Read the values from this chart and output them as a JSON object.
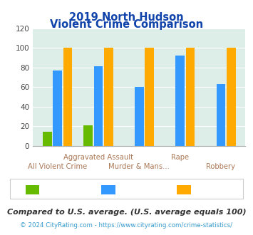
{
  "title_line1": "2019 North Hudson",
  "title_line2": "Violent Crime Comparison",
  "series": {
    "North Hudson": [
      14,
      21,
      0,
      0,
      0
    ],
    "Wisconsin": [
      77,
      81,
      60,
      92,
      63
    ],
    "National": [
      100,
      100,
      100,
      100,
      100
    ]
  },
  "colors": {
    "North Hudson": "#66bb00",
    "Wisconsin": "#3399ff",
    "National": "#ffaa00"
  },
  "ylim": [
    0,
    120
  ],
  "yticks": [
    0,
    20,
    40,
    60,
    80,
    100,
    120
  ],
  "background_color": "#ddeee8",
  "title_color": "#1144aa",
  "xlabel_color": "#aa7755",
  "footer_text": "Compared to U.S. average. (U.S. average equals 100)",
  "credit_text": "© 2024 CityRating.com - https://www.cityrating.com/crime-statistics/",
  "footer_color": "#333333",
  "credit_color": "#3399cc",
  "grid_color": "#ffffff",
  "num_groups": 5,
  "group_labels_bottom": [
    "All Violent Crime",
    "",
    "Murder & Mans...",
    "",
    "Robbery"
  ],
  "group_labels_top": [
    "",
    "Aggravated Assault",
    "",
    "Rape",
    ""
  ],
  "bar_width": 0.22,
  "bar_gap": 0.03
}
